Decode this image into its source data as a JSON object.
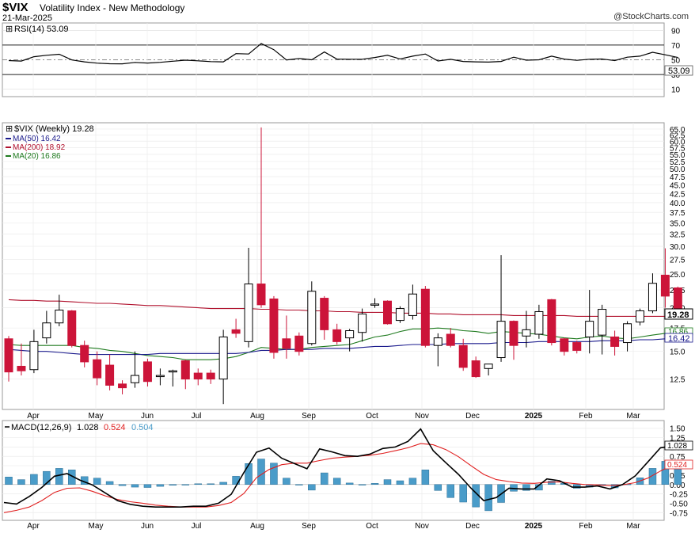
{
  "header": {
    "ticker": "$VIX",
    "name": "Volatility Index - New Methodology",
    "date": "21-Mar-2025",
    "credit": "@StockCharts.com"
  },
  "rsi_panel": {
    "label": "RSI(14) 53.09",
    "current": "53.09",
    "ticks": [
      "90",
      "70",
      "50",
      "30",
      "10"
    ]
  },
  "price_panel": {
    "label": "$VIX (Weekly) 19.28",
    "legend": [
      {
        "text": "MA(50) 16.42",
        "color": "#1a1a8c"
      },
      {
        "text": "MA(200) 18.92",
        "color": "#b0102c"
      },
      {
        "text": "MA(20) 16.86",
        "color": "#1e7a1e"
      }
    ],
    "ticks": [
      "65.0",
      "62.5",
      "60.0",
      "57.5",
      "55.0",
      "52.5",
      "50.0",
      "47.5",
      "45.0",
      "42.5",
      "40.0",
      "37.5",
      "35.0",
      "32.5",
      "30.0",
      "27.5",
      "25.0",
      "22.5",
      "20.0",
      "17.5",
      "15.0",
      "12.5"
    ],
    "last_close": "19.28",
    "ma_labels": [
      "16.86",
      "16.42"
    ]
  },
  "macd_panel": {
    "label_prefix": "MACD(12,26,9)",
    "macd": "1.028",
    "signal": "0.524",
    "hist": "0.504",
    "ticks": [
      "1.50",
      "1.25",
      "1.00",
      "0.75",
      "0.50",
      "0.25",
      "0.00",
      "-0.25",
      "-0.50",
      "-0.75"
    ]
  },
  "x_axis": [
    "Apr",
    "May",
    "Jun",
    "Jul",
    "Aug",
    "Sep",
    "Oct",
    "Nov",
    "Dec",
    "2025",
    "Feb",
    "Mar"
  ],
  "colors": {
    "up": "#ffffff",
    "down": "#cc1439",
    "doji": "#000000",
    "rsi": "#000000",
    "macd": "#000000",
    "signal": "#e02020",
    "hist": "#4a9cc9",
    "ma50": "#1a1a8c",
    "ma200": "#b0102c",
    "ma20": "#1e7a1e"
  },
  "chart_data": [
    {
      "type": "line",
      "title": "RSI(14) 53.09",
      "ylim": [
        0,
        100
      ],
      "values": [
        48.9,
        48.3,
        54.2,
        56.1,
        57.5,
        49.8,
        47.2,
        45.5,
        44.6,
        44.5,
        46.5,
        45.6,
        46.6,
        48.1,
        49.5,
        48.6,
        47.5,
        47.2,
        58.4,
        57.9,
        72.1,
        63.8,
        49.8,
        51.8,
        50.0,
        60.6,
        51.0,
        50.7,
        50.7,
        53.1,
        56.1,
        51.2,
        54.9,
        57.9,
        48.4,
        50.6,
        47.7,
        47.2,
        46.9,
        47.7,
        53.5,
        49.5,
        50.0,
        54.9,
        51.0,
        49.2,
        50.7,
        51.1,
        48.9,
        53.6,
        54.9,
        60.2,
        56.8,
        53.09
      ]
    },
    {
      "type": "candlestick",
      "title": "$VIX (Weekly) 19.28",
      "scale": "log",
      "ylim": [
        10.5,
        65
      ],
      "candles": [
        {
          "o": 16.3,
          "h": 16.6,
          "l": 12.3,
          "c": 13.1
        },
        {
          "o": 13.6,
          "h": 15.8,
          "l": 12.8,
          "c": 13.2
        },
        {
          "o": 13.3,
          "h": 17.3,
          "l": 13.0,
          "c": 16.0
        },
        {
          "o": 16.4,
          "h": 19.6,
          "l": 15.8,
          "c": 18.1
        },
        {
          "o": 18.1,
          "h": 21.8,
          "l": 17.7,
          "c": 19.7
        },
        {
          "o": 19.6,
          "h": 19.7,
          "l": 15.4,
          "c": 15.6
        },
        {
          "o": 15.6,
          "h": 16.1,
          "l": 13.5,
          "c": 14.0
        },
        {
          "o": 14.2,
          "h": 15.0,
          "l": 12.0,
          "c": 12.6
        },
        {
          "o": 13.7,
          "h": 14.7,
          "l": 11.6,
          "c": 12.0
        },
        {
          "o": 12.1,
          "h": 12.4,
          "l": 11.3,
          "c": 11.8
        },
        {
          "o": 12.2,
          "h": 15.0,
          "l": 11.8,
          "c": 12.8
        },
        {
          "o": 14.0,
          "h": 14.3,
          "l": 11.9,
          "c": 12.3
        },
        {
          "o": 12.8,
          "h": 13.4,
          "l": 12.0,
          "c": 12.8
        },
        {
          "o": 13.1,
          "h": 13.3,
          "l": 11.9,
          "c": 13.2
        },
        {
          "o": 14.1,
          "h": 14.2,
          "l": 11.7,
          "c": 12.5
        },
        {
          "o": 13.0,
          "h": 13.4,
          "l": 12.0,
          "c": 12.5
        },
        {
          "o": 13.0,
          "h": 13.3,
          "l": 12.1,
          "c": 12.5
        },
        {
          "o": 12.5,
          "h": 17.3,
          "l": 10.6,
          "c": 16.5
        },
        {
          "o": 17.3,
          "h": 18.6,
          "l": 16.4,
          "c": 16.9
        },
        {
          "o": 16.0,
          "h": 29.7,
          "l": 15.4,
          "c": 23.4
        },
        {
          "o": 23.4,
          "h": 65.7,
          "l": 20.0,
          "c": 20.4
        },
        {
          "o": 21.2,
          "h": 21.6,
          "l": 14.3,
          "c": 14.9
        },
        {
          "o": 16.3,
          "h": 19.0,
          "l": 14.3,
          "c": 15.3
        },
        {
          "o": 16.6,
          "h": 17.0,
          "l": 14.6,
          "c": 15.0
        },
        {
          "o": 15.8,
          "h": 23.8,
          "l": 15.6,
          "c": 22.3
        },
        {
          "o": 21.3,
          "h": 21.6,
          "l": 16.2,
          "c": 17.3
        },
        {
          "o": 17.3,
          "h": 18.0,
          "l": 15.7,
          "c": 16.0
        },
        {
          "o": 16.4,
          "h": 17.4,
          "l": 15.0,
          "c": 17.2
        },
        {
          "o": 17.0,
          "h": 19.9,
          "l": 16.0,
          "c": 19.2
        },
        {
          "o": 20.4,
          "h": 21.3,
          "l": 20.0,
          "c": 20.5
        },
        {
          "o": 20.9,
          "h": 21.0,
          "l": 17.9,
          "c": 18.0
        },
        {
          "o": 18.4,
          "h": 20.2,
          "l": 18.1,
          "c": 19.9
        },
        {
          "o": 19.0,
          "h": 23.3,
          "l": 18.5,
          "c": 21.9
        },
        {
          "o": 22.6,
          "h": 23.1,
          "l": 15.4,
          "c": 15.6
        },
        {
          "o": 15.6,
          "h": 16.9,
          "l": 13.6,
          "c": 16.4
        },
        {
          "o": 16.8,
          "h": 17.5,
          "l": 15.4,
          "c": 15.6
        },
        {
          "o": 15.6,
          "h": 16.3,
          "l": 13.2,
          "c": 13.5
        },
        {
          "o": 14.1,
          "h": 14.5,
          "l": 12.6,
          "c": 12.7
        },
        {
          "o": 13.4,
          "h": 13.8,
          "l": 12.8,
          "c": 13.8
        },
        {
          "o": 14.4,
          "h": 28.3,
          "l": 14.0,
          "c": 18.3
        },
        {
          "o": 18.3,
          "h": 18.4,
          "l": 14.2,
          "c": 15.6
        },
        {
          "o": 16.6,
          "h": 19.6,
          "l": 15.4,
          "c": 17.3
        },
        {
          "o": 16.8,
          "h": 20.4,
          "l": 16.3,
          "c": 19.5
        },
        {
          "o": 21.1,
          "h": 21.2,
          "l": 15.6,
          "c": 15.9
        },
        {
          "o": 16.3,
          "h": 16.4,
          "l": 14.6,
          "c": 15.0
        },
        {
          "o": 15.9,
          "h": 16.1,
          "l": 14.8,
          "c": 15.1
        },
        {
          "o": 16.5,
          "h": 22.5,
          "l": 14.8,
          "c": 18.3
        },
        {
          "o": 16.7,
          "h": 20.4,
          "l": 14.7,
          "c": 19.8
        },
        {
          "o": 16.5,
          "h": 17.2,
          "l": 14.6,
          "c": 15.5
        },
        {
          "o": 15.9,
          "h": 18.3,
          "l": 15.0,
          "c": 18.0
        },
        {
          "o": 18.2,
          "h": 19.9,
          "l": 17.8,
          "c": 19.6
        },
        {
          "o": 19.6,
          "h": 25.1,
          "l": 19.3,
          "c": 23.5
        },
        {
          "o": 24.8,
          "h": 29.6,
          "l": 20.0,
          "c": 21.6
        },
        {
          "o": 22.8,
          "h": 23.0,
          "l": 19.0,
          "c": 19.28
        }
      ],
      "series": [
        {
          "name": "MA(50) 16.42",
          "values": [
            15.2,
            15.1,
            15.0,
            15.0,
            14.9,
            14.8,
            14.7,
            14.7,
            14.7,
            14.7,
            14.7,
            14.7,
            14.8,
            14.8,
            14.8,
            14.8,
            14.8,
            14.8,
            14.8,
            14.9,
            15.1,
            15.1,
            15.2,
            15.2,
            15.2,
            15.3,
            15.3,
            15.3,
            15.4,
            15.5,
            15.5,
            15.6,
            15.7,
            15.7,
            15.7,
            15.8,
            15.8,
            15.8,
            15.8,
            15.9,
            15.9,
            15.9,
            16.0,
            16.0,
            16.0,
            16.0,
            16.0,
            16.1,
            16.1,
            16.1,
            16.2,
            16.2,
            16.3,
            16.42
          ]
        },
        {
          "name": "MA(200) 18.92",
          "values": [
            21.1,
            21.0,
            21.0,
            20.9,
            20.9,
            20.8,
            20.7,
            20.6,
            20.6,
            20.5,
            20.4,
            20.3,
            20.3,
            20.2,
            20.1,
            20.0,
            19.9,
            19.9,
            19.9,
            19.9,
            19.8,
            19.8,
            19.7,
            19.7,
            19.6,
            19.6,
            19.5,
            19.5,
            19.4,
            19.4,
            19.4,
            19.3,
            19.3,
            19.3,
            19.2,
            19.2,
            19.1,
            19.1,
            19.1,
            19.1,
            19.0,
            19.0,
            19.0,
            19.0,
            19.0,
            18.9,
            18.9,
            18.9,
            18.9,
            18.9,
            18.9,
            18.9,
            18.9,
            18.92
          ]
        },
        {
          "name": "MA(20) 16.86",
          "values": [
            15.7,
            15.6,
            15.6,
            15.6,
            15.6,
            15.6,
            15.4,
            15.3,
            15.1,
            15.0,
            14.8,
            14.6,
            14.5,
            14.4,
            14.2,
            14.2,
            14.2,
            14.3,
            14.5,
            14.9,
            15.4,
            15.3,
            15.2,
            15.2,
            15.4,
            15.5,
            15.6,
            15.7,
            16.1,
            16.5,
            16.7,
            17.1,
            17.4,
            17.4,
            17.5,
            17.4,
            17.2,
            17.1,
            16.9,
            17.1,
            17.0,
            16.9,
            16.8,
            16.6,
            16.4,
            16.3,
            16.5,
            16.6,
            16.4,
            16.3,
            16.5,
            16.7,
            16.9,
            16.86
          ]
        }
      ]
    },
    {
      "type": "line",
      "title": "MACD(12,26,9) 1.028, 0.524, 0.504",
      "ylim": [
        -0.85,
        1.6
      ],
      "series": [
        {
          "name": "MACD",
          "values": [
            -0.48,
            -0.52,
            -0.32,
            -0.08,
            0.22,
            0.29,
            0.12,
            -0.01,
            -0.22,
            -0.43,
            -0.53,
            -0.58,
            -0.6,
            -0.6,
            -0.6,
            -0.58,
            -0.58,
            -0.5,
            -0.26,
            0.32,
            0.86,
            0.97,
            0.7,
            0.56,
            0.42,
            0.95,
            0.87,
            0.77,
            0.75,
            0.81,
            0.96,
            1.0,
            1.15,
            1.48,
            0.9,
            0.58,
            0.27,
            -0.1,
            -0.43,
            -0.35,
            -0.1,
            -0.12,
            -0.12,
            0.15,
            0.1,
            -0.07,
            -0.07,
            -0.04,
            -0.12,
            0.0,
            0.23,
            0.6,
            0.98,
            1.028
          ]
        },
        {
          "name": "signal",
          "values": [
            -0.75,
            -0.69,
            -0.6,
            -0.43,
            -0.21,
            -0.1,
            -0.09,
            -0.18,
            -0.3,
            -0.4,
            -0.46,
            -0.5,
            -0.55,
            -0.58,
            -0.6,
            -0.6,
            -0.6,
            -0.56,
            -0.48,
            -0.24,
            0.18,
            0.4,
            0.53,
            0.57,
            0.57,
            0.64,
            0.7,
            0.73,
            0.75,
            0.78,
            0.83,
            0.9,
            0.98,
            1.09,
            1.06,
            0.93,
            0.74,
            0.5,
            0.27,
            0.13,
            0.08,
            0.04,
            0.03,
            0.06,
            0.07,
            0.03,
            0.0,
            -0.01,
            -0.03,
            -0.01,
            0.05,
            0.17,
            0.36,
            0.524
          ]
        },
        {
          "name": "histogram",
          "values": [
            0.2,
            0.13,
            0.27,
            0.35,
            0.43,
            0.39,
            0.21,
            0.17,
            0.08,
            -0.03,
            -0.07,
            -0.08,
            -0.05,
            -0.02,
            0.0,
            0.02,
            0.02,
            0.06,
            0.22,
            0.56,
            0.68,
            0.57,
            0.17,
            -0.01,
            -0.15,
            0.31,
            0.17,
            0.04,
            0.0,
            0.03,
            0.13,
            0.1,
            0.17,
            0.39,
            -0.16,
            -0.35,
            -0.47,
            -0.6,
            -0.7,
            -0.48,
            -0.18,
            -0.16,
            -0.15,
            0.09,
            0.03,
            -0.1,
            -0.07,
            -0.03,
            -0.09,
            0.01,
            0.18,
            0.43,
            0.62,
            0.504
          ]
        }
      ]
    }
  ]
}
